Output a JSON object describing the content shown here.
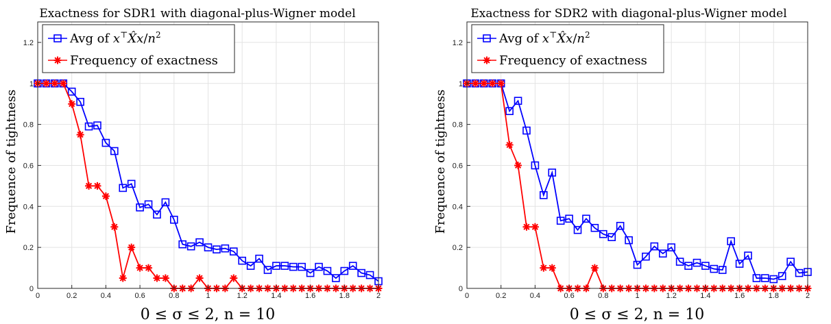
{
  "chart_data": [
    {
      "type": "line",
      "title": "Exactness for SDR1 with diagonal-plus-Wigner model",
      "xlabel": "0 ≤ σ ≤ 2, n = 10",
      "ylabel": "Frequence of tightness",
      "xlim": [
        0,
        2
      ],
      "ylim": [
        0,
        1.3
      ],
      "xticks": [
        "0",
        "0.2",
        "0.4",
        "0.6",
        "0.8",
        "1",
        "1.2",
        "1.4",
        "1.6",
        "1.8",
        "2"
      ],
      "yticks": [
        "0",
        "0.2",
        "0.4",
        "0.6",
        "0.8",
        "1",
        "1.2"
      ],
      "grid": true,
      "legend_position": "top-left",
      "x": [
        0,
        0.05,
        0.1,
        0.15,
        0.2,
        0.25,
        0.3,
        0.35,
        0.4,
        0.45,
        0.5,
        0.55,
        0.6,
        0.65,
        0.7,
        0.75,
        0.8,
        0.85,
        0.9,
        0.95,
        1.0,
        1.05,
        1.1,
        1.15,
        1.2,
        1.25,
        1.3,
        1.35,
        1.4,
        1.45,
        1.5,
        1.55,
        1.6,
        1.65,
        1.7,
        1.75,
        1.8,
        1.85,
        1.9,
        1.95,
        2.0
      ],
      "series": [
        {
          "name": "Avg of x^T X̂ x / n^2",
          "color": "#0000ff",
          "marker": "square",
          "values": [
            1,
            1,
            1,
            1,
            0.96,
            0.91,
            0.79,
            0.795,
            0.71,
            0.67,
            0.49,
            0.51,
            0.395,
            0.41,
            0.36,
            0.42,
            0.335,
            0.215,
            0.205,
            0.225,
            0.2,
            0.19,
            0.195,
            0.18,
            0.135,
            0.11,
            0.145,
            0.09,
            0.11,
            0.11,
            0.105,
            0.105,
            0.075,
            0.105,
            0.085,
            0.05,
            0.085,
            0.11,
            0.075,
            0.065,
            0.035
          ]
        },
        {
          "name": "Frequency of exactness",
          "color": "#ff0000",
          "marker": "star",
          "values": [
            1,
            1,
            1,
            1,
            0.9,
            0.75,
            0.5,
            0.5,
            0.45,
            0.3,
            0.05,
            0.2,
            0.1,
            0.1,
            0.05,
            0.05,
            0,
            0,
            0,
            0.05,
            0,
            0,
            0,
            0.05,
            0,
            0,
            0,
            0,
            0,
            0,
            0,
            0,
            0,
            0,
            0,
            0,
            0,
            0,
            0,
            0,
            0
          ]
        }
      ]
    },
    {
      "type": "line",
      "title": "Exactness for SDR2 with diagonal-plus-Wigner model",
      "xlabel": "0 ≤ σ ≤ 2, n = 10",
      "ylabel": "Frequence of tightness",
      "xlim": [
        0,
        2
      ],
      "ylim": [
        0,
        1.3
      ],
      "xticks": [
        "0",
        "0.2",
        "0.4",
        "0.6",
        "0.8",
        "1",
        "1.2",
        "1.4",
        "1.6",
        "1.8",
        "2"
      ],
      "yticks": [
        "0",
        "0.2",
        "0.4",
        "0.6",
        "0.8",
        "1",
        "1.2"
      ],
      "grid": true,
      "legend_position": "top-left",
      "x": [
        0,
        0.05,
        0.1,
        0.15,
        0.2,
        0.25,
        0.3,
        0.35,
        0.4,
        0.45,
        0.5,
        0.55,
        0.6,
        0.65,
        0.7,
        0.75,
        0.8,
        0.85,
        0.9,
        0.95,
        1.0,
        1.05,
        1.1,
        1.15,
        1.2,
        1.25,
        1.3,
        1.35,
        1.4,
        1.45,
        1.5,
        1.55,
        1.6,
        1.65,
        1.7,
        1.75,
        1.8,
        1.85,
        1.9,
        1.95,
        2.0
      ],
      "series": [
        {
          "name": "Avg of x^T X̂ x / n^2",
          "color": "#0000ff",
          "marker": "square",
          "values": [
            1,
            1,
            1,
            1,
            1,
            0.865,
            0.915,
            0.77,
            0.6,
            0.455,
            0.565,
            0.33,
            0.34,
            0.285,
            0.34,
            0.295,
            0.265,
            0.25,
            0.305,
            0.235,
            0.115,
            0.155,
            0.205,
            0.17,
            0.2,
            0.13,
            0.11,
            0.125,
            0.11,
            0.095,
            0.09,
            0.23,
            0.12,
            0.16,
            0.05,
            0.05,
            0.045,
            0.06,
            0.13,
            0.075,
            0.08
          ]
        },
        {
          "name": "Frequency of exactness",
          "color": "#ff0000",
          "marker": "star",
          "values": [
            1,
            1,
            1,
            1,
            1,
            0.7,
            0.6,
            0.3,
            0.3,
            0.1,
            0.1,
            0,
            0,
            0,
            0,
            0.1,
            0,
            0,
            0,
            0,
            0,
            0,
            0,
            0,
            0,
            0,
            0,
            0,
            0,
            0,
            0,
            0,
            0,
            0,
            0,
            0,
            0,
            0,
            0,
            0,
            0
          ]
        }
      ]
    }
  ]
}
